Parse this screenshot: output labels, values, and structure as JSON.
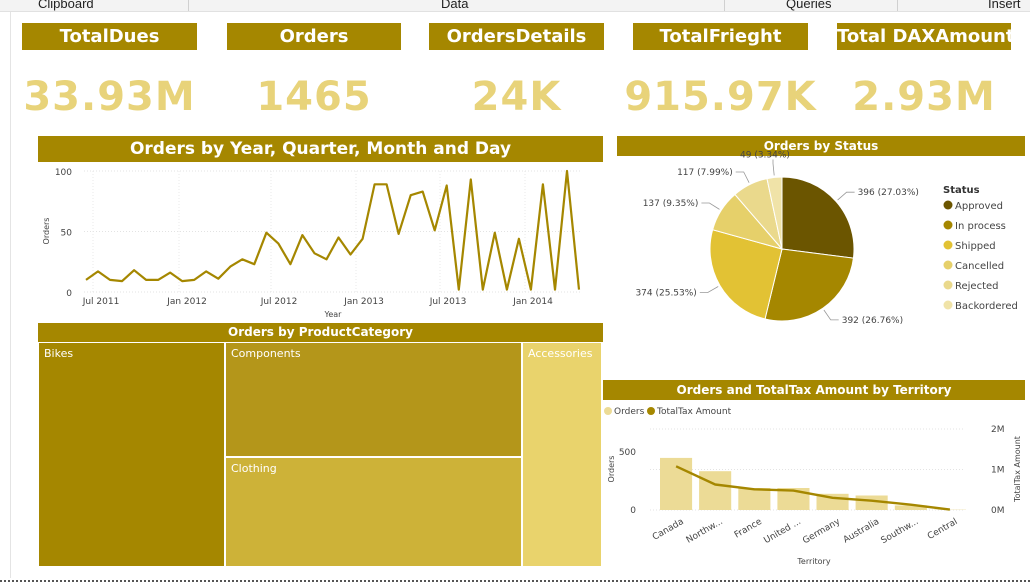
{
  "ribbon": {
    "items": [
      "Clipboard",
      "Data",
      "Queries",
      "Insert"
    ]
  },
  "colors": {
    "accent": "#a58700",
    "card_value": "#e8d37a"
  },
  "cards": [
    {
      "title": "TotalDues",
      "value": "33.93M"
    },
    {
      "title": "Orders",
      "value": "1465"
    },
    {
      "title": "OrdersDetails",
      "value": "24K"
    },
    {
      "title": "TotalFrieght",
      "value": "915.97K"
    },
    {
      "title": "Total DAXAmount",
      "value": "2.93M"
    }
  ],
  "chart_data": [
    {
      "type": "line",
      "title": "Orders by Year, Quarter, Month and Day",
      "xlabel": "Year",
      "ylabel": "Orders",
      "ylim": [
        0,
        100
      ],
      "y_ticks": [
        "0",
        "50",
        "100"
      ],
      "x_ticks": [
        "Jul 2011",
        "Jan 2012",
        "Jul 2012",
        "Jan 2013",
        "Jul 2013",
        "Jan 2014"
      ],
      "color": "#a58700",
      "grid": true,
      "series": [
        {
          "values": [
            10,
            17,
            10,
            9,
            18,
            10,
            10,
            16,
            9,
            10,
            17,
            11,
            21,
            27,
            23,
            49,
            40,
            23,
            47,
            32,
            27,
            45,
            31,
            44,
            89,
            89,
            48,
            80,
            83,
            51,
            88,
            2,
            93,
            2,
            49,
            2,
            44,
            2,
            89,
            2,
            100,
            2
          ]
        }
      ]
    },
    {
      "type": "pie",
      "title": "Orders by Status",
      "legend_title": "Status",
      "legend_position": "right",
      "slices": [
        {
          "label": "Approved",
          "value": 396,
          "percent_label": "396 (27.03%)",
          "color": "#6b5500"
        },
        {
          "label": "In process",
          "value": 392,
          "percent_label": "392 (26.76%)",
          "color": "#a58700"
        },
        {
          "label": "Shipped",
          "value": 374,
          "percent_label": "374 (25.53%)",
          "color": "#e2c234"
        },
        {
          "label": "Cancelled",
          "value": 137,
          "percent_label": "137 (9.35%)",
          "color": "#e6d06a"
        },
        {
          "label": "Rejected",
          "value": 117,
          "percent_label": "117 (7.99%)",
          "color": "#ead98c"
        },
        {
          "label": "Backordered",
          "value": 49,
          "percent_label": "49 (3.34%)",
          "color": "#f0e3a8"
        }
      ]
    },
    {
      "type": "treemap",
      "title": "Orders by ProductCategory",
      "tiles": [
        {
          "label": "Bikes",
          "color": "#a58700"
        },
        {
          "label": "Components",
          "color": "#b4961a"
        },
        {
          "label": "Clothing",
          "color": "#cdb238"
        },
        {
          "label": "Accessories",
          "color": "#e9d36c"
        }
      ]
    },
    {
      "type": "bar",
      "title": "Orders and TotalTax Amount by Territory",
      "legend": [
        {
          "name": "Orders",
          "color": "#ecdb96"
        },
        {
          "name": "TotalTax Amount",
          "color": "#a58700"
        }
      ],
      "xlabel": "Territory",
      "ylabel": "Orders",
      "y2label": "TotalTax Amount",
      "categories": [
        "Canada",
        "Northw...",
        "France",
        "United ...",
        "Germany",
        "Australia",
        "Southw...",
        "Central"
      ],
      "ylim": [
        0,
        700
      ],
      "y_ticks": [
        "0",
        "500"
      ],
      "y2lim": [
        0,
        2000000
      ],
      "y2_ticks": [
        "0M",
        "1M",
        "2M"
      ],
      "series": [
        {
          "name": "Orders",
          "type": "bar",
          "values": [
            450,
            335,
            190,
            190,
            140,
            125,
            40,
            3
          ]
        },
        {
          "name": "TotalTax Amount",
          "type": "line",
          "values": [
            1080000,
            630000,
            510000,
            480000,
            300000,
            230000,
            130000,
            10000
          ]
        }
      ]
    }
  ]
}
